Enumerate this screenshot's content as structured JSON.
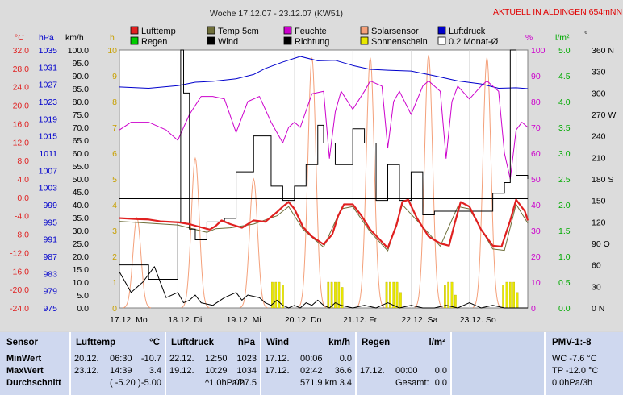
{
  "header": {
    "title": "Woche 17.12.07 - 23.12.07 (KW51)",
    "live_link": "AKTUELL IN ALDINGEN 654mNN"
  },
  "colors": {
    "background": "#dcdcdc",
    "plot_bg": "#ffffff",
    "lufttemp": "#e02020",
    "temp5cm": "#6e6e3a",
    "feuchte": "#cc00cc",
    "solarsensor": "#f4a07a",
    "luftdruck": "#0000cc",
    "regen": "#00cc00",
    "wind": "#000000",
    "richtung": "#000000",
    "sonnenschein": "#e8e800",
    "monat_avg": "#ffffff"
  },
  "legend": [
    {
      "label": "Lufttemp",
      "color": "#e02020",
      "style": "box"
    },
    {
      "label": "Temp 5cm",
      "color": "#6e6e3a",
      "style": "box"
    },
    {
      "label": "Feuchte",
      "color": "#cc00cc",
      "style": "box"
    },
    {
      "label": "Solarsensor",
      "color": "#f4a07a",
      "style": "box"
    },
    {
      "label": "Luftdruck",
      "color": "#0000cc",
      "style": "box"
    },
    {
      "label": "Regen",
      "color": "#00cc00",
      "style": "box"
    },
    {
      "label": "Wind",
      "color": "#000000",
      "style": "box"
    },
    {
      "label": "Richtung",
      "color": "#000000",
      "style": "box"
    },
    {
      "label": "Sonnenschein",
      "color": "#e8e800",
      "style": "box"
    },
    {
      "label": "0.2 Monat-Ø",
      "color": "#ffffff",
      "style": "box"
    }
  ],
  "axes": {
    "temp": {
      "unit": "°C",
      "color": "#e02020",
      "ticks": [
        "32.0",
        "28.0",
        "24.0",
        "20.0",
        "16.0",
        "12.0",
        "8.0",
        "4.0",
        "0.0",
        "-4.0",
        "-8.0",
        "-12.0",
        "-16.0",
        "-20.0",
        "-24.0"
      ]
    },
    "pressure": {
      "unit": "hPa",
      "color": "#0000cc",
      "ticks": [
        "1035",
        "1031",
        "1027",
        "1023",
        "1019",
        "1015",
        "1011",
        "1007",
        "1003",
        "999",
        "995",
        "991",
        "987",
        "983",
        "979",
        "975"
      ]
    },
    "wind": {
      "unit": "km/h",
      "color": "#000000",
      "ticks": [
        "100.0",
        "95.0",
        "90.0",
        "85.0",
        "80.0",
        "75.0",
        "70.0",
        "65.0",
        "60.0",
        "55.0",
        "50.0",
        "45.0",
        "40.0",
        "35.0",
        "30.0",
        "25.0",
        "20.0",
        "15.0",
        "10.0",
        "5.0",
        "0.0"
      ]
    },
    "sun": {
      "unit": "h",
      "color": "#c8a000",
      "ticks": [
        "10",
        "9",
        "8",
        "7",
        "6",
        "5",
        "4",
        "3",
        "2",
        "1",
        "0"
      ]
    },
    "humidity": {
      "unit": "%",
      "color": "#cc00cc",
      "ticks": [
        "100",
        "90",
        "80",
        "70",
        "60",
        "50",
        "40",
        "30",
        "20",
        "10",
        "0"
      ]
    },
    "rain": {
      "unit": "l/m²",
      "color": "#00aa00",
      "ticks": [
        "5.0",
        "4.5",
        "4.0",
        "3.5",
        "3.0",
        "2.5",
        "2.0",
        "1.5",
        "1.0",
        "0.5",
        "0.0"
      ]
    },
    "direction": {
      "unit": "°",
      "color": "#000000",
      "ticks": [
        "360 N",
        "330",
        "300",
        "270 W",
        "240",
        "210",
        "180 S",
        "150",
        "120",
        "90 O",
        "60",
        "30",
        "0 N"
      ]
    },
    "x_days": [
      "17.12. Mo",
      "18.12. Di",
      "19.12. Mi",
      "20.12. Do",
      "21.12. Fr",
      "22.12. Sa",
      "23.12. So"
    ]
  },
  "chart_data": {
    "type": "line",
    "title": "Woche 17.12.07 - 23.12.07 (KW51)",
    "x_unit": "day offset from 17.12. 00:00",
    "xlim": [
      0,
      7
    ],
    "monat_avg_temp": -0.2,
    "series": [
      {
        "name": "Lufttemp",
        "axis": "temp",
        "ylim": [
          -24,
          32
        ],
        "x": [
          0,
          0.3,
          0.5,
          0.7,
          1.0,
          1.2,
          1.4,
          1.55,
          1.65,
          1.75,
          1.9,
          2.1,
          2.3,
          2.5,
          2.7,
          2.8,
          2.9,
          3.0,
          3.15,
          3.3,
          3.5,
          3.65,
          3.75,
          3.85,
          4.0,
          4.15,
          4.3,
          4.45,
          4.6,
          4.75,
          4.85,
          4.95,
          5.1,
          5.3,
          5.5,
          5.65,
          5.75,
          5.85,
          6.0,
          6.2,
          6.4,
          6.55,
          6.7,
          6.8,
          6.95,
          7.0
        ],
        "y": [
          -4.5,
          -4.7,
          -4.8,
          -5.2,
          -5.4,
          -5.8,
          -6.5,
          -7.0,
          -6.2,
          -5.0,
          -5.8,
          -6.6,
          -5.0,
          -5.3,
          -3.2,
          -2.0,
          -1.0,
          -2.5,
          -6.5,
          -8.5,
          -10.2,
          -8.0,
          -4.0,
          -1.5,
          -1.5,
          -4.0,
          -7.0,
          -9.0,
          -11.0,
          -6.0,
          -1.0,
          -0.5,
          -4.5,
          -8.5,
          -10.0,
          -10.5,
          -5.5,
          -1.0,
          -2.0,
          -7.0,
          -10.5,
          -10.7,
          -5.0,
          -0.5,
          -3.0,
          -5.0
        ]
      },
      {
        "name": "Temp 5cm",
        "axis": "temp",
        "ylim": [
          -24,
          32
        ],
        "x": [
          0,
          0.5,
          1.0,
          1.5,
          1.65,
          1.9,
          2.3,
          2.7,
          2.9,
          3.15,
          3.5,
          3.8,
          4.0,
          4.3,
          4.6,
          4.85,
          5.1,
          5.5,
          5.8,
          6.0,
          6.4,
          6.6,
          6.8,
          7.0
        ],
        "y": [
          -5.2,
          -5.6,
          -6.0,
          -7.6,
          -6.8,
          -6.6,
          -5.8,
          -4.0,
          -2.0,
          -7.0,
          -10.8,
          -2.5,
          -2.0,
          -7.5,
          -11.6,
          -1.6,
          -5.0,
          -10.6,
          -2.0,
          -2.5,
          -11.2,
          -11.5,
          -1.5,
          -5.6
        ]
      },
      {
        "name": "Feuchte",
        "axis": "humidity",
        "ylim": [
          0,
          100
        ],
        "x": [
          0,
          0.2,
          0.5,
          0.8,
          1.0,
          1.2,
          1.4,
          1.6,
          1.8,
          2.0,
          2.2,
          2.4,
          2.6,
          2.8,
          2.9,
          3.0,
          3.1,
          3.3,
          3.5,
          3.6,
          3.7,
          3.8,
          4.0,
          4.2,
          4.3,
          4.5,
          4.6,
          4.7,
          4.8,
          5.0,
          5.2,
          5.3,
          5.5,
          5.6,
          5.7,
          5.8,
          6.0,
          6.2,
          6.3,
          6.5,
          6.6,
          6.7,
          6.8,
          6.9,
          7.0
        ],
        "y": [
          69,
          72,
          72,
          69,
          65,
          75,
          82,
          82,
          81,
          68,
          80,
          82,
          72,
          64,
          70,
          72,
          70,
          83,
          84,
          58,
          76,
          84,
          77,
          84,
          88,
          86,
          62,
          80,
          84,
          75,
          86,
          88,
          84,
          58,
          80,
          86,
          81,
          86,
          88,
          84,
          60,
          50,
          69,
          72,
          70
        ]
      },
      {
        "name": "Luftdruck",
        "axis": "pressure",
        "ylim": [
          975,
          1035
        ],
        "x": [
          0,
          0.5,
          1.0,
          1.3,
          1.6,
          2.0,
          2.3,
          2.5,
          2.8,
          3.1,
          3.4,
          3.7,
          4.0,
          4.3,
          4.6,
          5.0,
          5.4,
          5.8,
          6.2,
          6.5,
          6.8,
          7.0
        ],
        "y": [
          1026.4,
          1026.1,
          1026.7,
          1027.5,
          1027.7,
          1028.3,
          1029.3,
          1030.7,
          1032.2,
          1033.5,
          1032.5,
          1032.6,
          1031.4,
          1030.5,
          1030.3,
          1030.1,
          1029.0,
          1027.8,
          1027.1,
          1026.1,
          1026.2,
          1026.0
        ]
      },
      {
        "name": "Solarsensor",
        "axis": "wind",
        "ylim": [
          0,
          100
        ],
        "peaks_x": [
          0.3,
          1.3,
          2.3,
          3.3,
          4.3,
          5.3,
          6.3
        ],
        "peaks_y": [
          35,
          58,
          50,
          97,
          97,
          98,
          97
        ]
      },
      {
        "name": "Wind",
        "axis": "wind",
        "ylim": [
          0,
          100
        ],
        "x": [
          0,
          0.2,
          0.4,
          0.6,
          0.8,
          1.0,
          1.1,
          1.2,
          1.3,
          1.4,
          1.6,
          1.8,
          2.0,
          2.1,
          2.2,
          2.4,
          2.5,
          2.6,
          2.7,
          2.8,
          2.9,
          3.0,
          3.1,
          3.2,
          3.3,
          3.4,
          3.5,
          3.6,
          3.7,
          3.8,
          4.0,
          4.2,
          4.4,
          4.6,
          4.8,
          5.0,
          5.2,
          5.4,
          5.6,
          5.8,
          6.0,
          6.2,
          6.4,
          6.6,
          6.8,
          7.0
        ],
        "y": [
          14,
          6,
          10,
          16,
          4,
          6,
          2,
          3,
          5,
          2,
          1,
          4,
          6,
          3,
          5,
          4,
          2,
          1,
          3,
          1,
          0,
          1,
          0,
          2,
          1,
          3,
          1,
          0,
          2,
          1,
          0,
          1,
          0,
          2,
          0,
          1,
          0,
          0,
          1,
          0,
          2,
          0,
          1,
          0,
          0,
          0
        ]
      },
      {
        "name": "Richtung",
        "axis": "direction",
        "ylim": [
          0,
          360
        ],
        "x": [
          0,
          0.5,
          1.0,
          1.05,
          1.1,
          1.2,
          1.3,
          1.5,
          1.8,
          2.0,
          2.3,
          2.6,
          2.8,
          3.0,
          3.2,
          3.4,
          3.5,
          3.7,
          4.0,
          4.2,
          4.4,
          4.6,
          4.8,
          5.0,
          5.2,
          5.4,
          5.6,
          5.8,
          6.0,
          6.2,
          6.4,
          6.6,
          6.7,
          6.8,
          7.0
        ],
        "y": [
          60,
          40,
          120,
          360,
          300,
          110,
          95,
          120,
          125,
          190,
          240,
          170,
          150,
          170,
          200,
          255,
          230,
          200,
          250,
          230,
          150,
          200,
          150,
          190,
          130,
          135,
          135,
          135,
          135,
          135,
          160,
          175,
          360,
          185,
          180
        ]
      },
      {
        "name": "Sonnenschein",
        "axis": "sun",
        "ylim": [
          0,
          10
        ],
        "bars_x": [
          2.62,
          2.68,
          2.74,
          2.8,
          3.58,
          3.64,
          3.7,
          3.76,
          3.82,
          4.58,
          4.64,
          4.7,
          4.76,
          4.82,
          5.58,
          5.64,
          5.7,
          5.76,
          6.58,
          6.64,
          6.7,
          6.76,
          6.82
        ],
        "bars_y": [
          1.0,
          1.0,
          1.0,
          0.9,
          1.0,
          1.0,
          1.0,
          1.0,
          0.8,
          1.0,
          1.0,
          1.0,
          1.0,
          0.6,
          0.9,
          1.0,
          1.0,
          0.5,
          0.9,
          1.0,
          1.0,
          1.0,
          0.6
        ]
      }
    ]
  },
  "stats": {
    "sensor": {
      "header": "Sensor",
      "rows": [
        "MinWert",
        "MaxWert",
        "Durchschnitt"
      ]
    },
    "lufttemp": {
      "header": "Lufttemp",
      "unit": "°C",
      "rows": [
        [
          "20.12.",
          "06:30",
          "-10.7"
        ],
        [
          "23.12.",
          "14:39",
          "3.4"
        ],
        [
          "",
          "( -5.20 )",
          "-5.00"
        ]
      ]
    },
    "luftdruck": {
      "header": "Luftdruck",
      "unit": "hPa",
      "rows": [
        [
          "22.12.",
          "12:50",
          "1023"
        ],
        [
          "19.12.",
          "10:29",
          "1034"
        ],
        [
          "",
          "^1.0hPa/h",
          "1027.5"
        ]
      ]
    },
    "wind": {
      "header": "Wind",
      "unit": "km/h",
      "rows": [
        [
          "17.12.",
          "00:06",
          "0.0"
        ],
        [
          "17.12.",
          "02:42",
          "36.6"
        ],
        [
          "",
          "571.9 km",
          "3.4"
        ]
      ]
    },
    "regen": {
      "header": "Regen",
      "unit": "l/m²",
      "rows": [
        [
          "",
          "",
          ""
        ],
        [
          "17.12.",
          "00:00",
          "0.0"
        ],
        [
          "",
          "Gesamt:",
          "0.0"
        ]
      ]
    },
    "pmv": {
      "header": "PMV-1:-8",
      "rows": [
        "WC -7.6 °C",
        "TP -12.0 °C",
        "0.0hPa/3h"
      ]
    }
  }
}
